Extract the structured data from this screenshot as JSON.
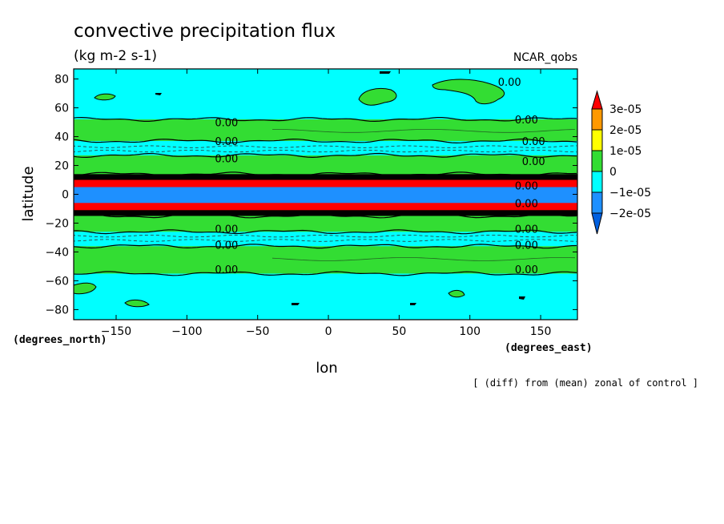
{
  "chart_data": {
    "type": "heatmap",
    "title": "convective precipitation flux",
    "units": "(kg m-2 s-1)",
    "dataset": "NCAR_qobs",
    "xlabel": "lon",
    "ylabel": "latitude",
    "x_units": "(degrees_east)",
    "y_units": "(degrees_north)",
    "note": "[ (diff) from (mean) zonal of control ]",
    "xlim": [
      -180,
      176
    ],
    "ylim": [
      -87,
      87
    ],
    "x_ticks": [
      -150,
      -100,
      -50,
      0,
      50,
      100,
      150
    ],
    "x_tick_labels": [
      "−150",
      "−100",
      "−50",
      "0",
      "50",
      "100",
      "150"
    ],
    "y_ticks": [
      -80,
      -60,
      -40,
      -20,
      0,
      20,
      40,
      60,
      80
    ],
    "y_tick_labels": [
      "−80",
      "−60",
      "−40",
      "−20",
      "0",
      "20",
      "40",
      "60",
      "80"
    ],
    "colorbar": {
      "labels": [
        "3e-05",
        "2e-05",
        "1e-05",
        "0",
        "−1e-05",
        "−2e-05"
      ],
      "colors": [
        "#ff0000",
        "#ff9900",
        "#ffff00",
        "#33dd33",
        "#00ffff",
        "#1e90ff",
        "#0060e0"
      ]
    },
    "bands": [
      {
        "lat_from": 52,
        "lat_to": 87,
        "color": "#00ffff"
      },
      {
        "lat_from": 37,
        "lat_to": 52,
        "color": "#33dd33"
      },
      {
        "lat_from": 27,
        "lat_to": 37,
        "color": "#00ffff"
      },
      {
        "lat_from": 14,
        "lat_to": 27,
        "color": "#33dd33"
      },
      {
        "lat_from": 10,
        "lat_to": 14,
        "color": "#000000"
      },
      {
        "lat_from": 5,
        "lat_to": 10,
        "color": "#ff0000"
      },
      {
        "lat_from": -6,
        "lat_to": 5,
        "color": "#1e90ff"
      },
      {
        "lat_from": -11,
        "lat_to": -6,
        "color": "#ff0000"
      },
      {
        "lat_from": -15,
        "lat_to": -11,
        "color": "#000000"
      },
      {
        "lat_from": -26,
        "lat_to": -15,
        "color": "#33dd33"
      },
      {
        "lat_from": -36,
        "lat_to": -26,
        "color": "#00ffff"
      },
      {
        "lat_from": -55,
        "lat_to": -36,
        "color": "#33dd33"
      },
      {
        "lat_from": -87,
        "lat_to": -55,
        "color": "#00ffff"
      }
    ],
    "contour_labels": [
      {
        "text": "0.00",
        "lon": -72,
        "lat": 50
      },
      {
        "text": "0.00",
        "lon": -72,
        "lat": 37
      },
      {
        "text": "0.00",
        "lon": -72,
        "lat": 25
      },
      {
        "text": "0.00",
        "lon": -72,
        "lat": -24
      },
      {
        "text": "0.00",
        "lon": -72,
        "lat": -35
      },
      {
        "text": "0.00",
        "lon": -72,
        "lat": -52
      },
      {
        "text": "0.00",
        "lon": 128,
        "lat": 78
      },
      {
        "text": "0.00",
        "lon": 140,
        "lat": 52
      },
      {
        "text": "0.00",
        "lon": 145,
        "lat": 37
      },
      {
        "text": "0.00",
        "lon": 145,
        "lat": 23
      },
      {
        "text": "0.00",
        "lon": 140,
        "lat": 6
      },
      {
        "text": "0.00",
        "lon": 140,
        "lat": -6
      },
      {
        "text": "0.00",
        "lon": 140,
        "lat": -24
      },
      {
        "text": "0.00",
        "lon": 140,
        "lat": -35
      },
      {
        "text": "0.00",
        "lon": 140,
        "lat": -52
      }
    ]
  }
}
